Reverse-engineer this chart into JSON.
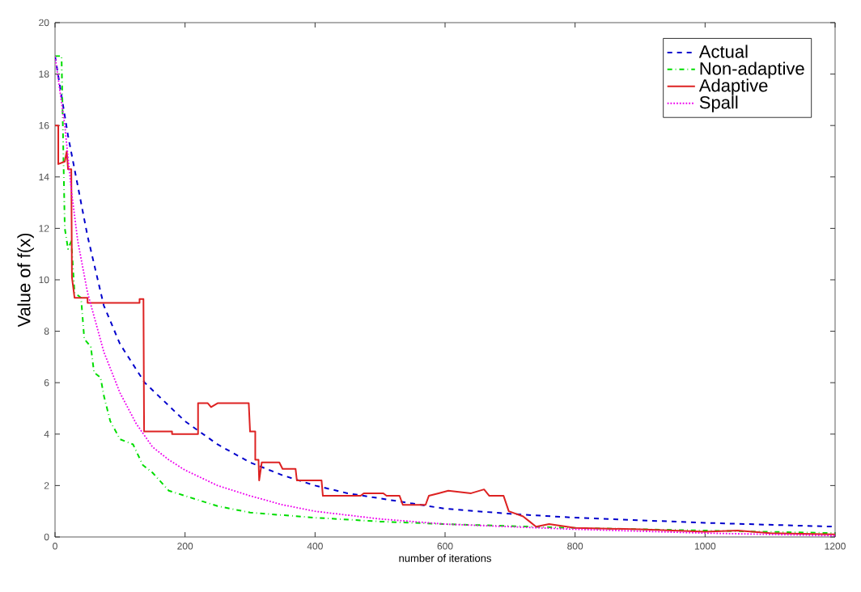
{
  "chart_data": {
    "type": "line",
    "xlabel": "number of iterations",
    "ylabel": "Value of f(x)",
    "xlim": [
      0,
      1200
    ],
    "ylim": [
      0,
      20
    ],
    "xticks": [
      0,
      200,
      400,
      600,
      800,
      1000,
      1200
    ],
    "yticks": [
      0,
      2,
      4,
      6,
      8,
      10,
      12,
      14,
      16,
      18,
      20
    ],
    "legend": "top right",
    "grid": false,
    "marker": "none",
    "series": [
      {
        "name": "Actual",
        "color": "#0000cc",
        "line_style": "dashed",
        "x": [
          0,
          20,
          50,
          75,
          100,
          138,
          200,
          250,
          300,
          350,
          400,
          450,
          500,
          600,
          700,
          800,
          1000,
          1200
        ],
        "values": [
          18.7,
          15.6,
          11.7,
          9,
          7.5,
          6,
          4.5,
          3.6,
          2.9,
          2.4,
          2.0,
          1.7,
          1.5,
          1.1,
          0.9,
          0.75,
          0.55,
          0.4
        ]
      },
      {
        "name": "Non-adaptive",
        "color": "#00dd00",
        "line_style": "dashdot",
        "x": [
          0,
          10,
          15,
          20,
          25,
          30,
          40,
          45,
          55,
          60,
          70,
          75,
          85,
          100,
          120,
          135,
          150,
          175,
          200,
          250,
          300,
          400,
          500,
          600,
          800,
          1000,
          1200
        ],
        "values": [
          18.7,
          18.7,
          12,
          11.2,
          11.5,
          9.5,
          9.3,
          7.7,
          7.4,
          6.4,
          6.2,
          5.5,
          4.5,
          3.8,
          3.6,
          2.8,
          2.5,
          1.8,
          1.6,
          1.2,
          0.95,
          0.75,
          0.6,
          0.5,
          0.35,
          0.25,
          0.15
        ]
      },
      {
        "name": "Adaptive",
        "color": "#dd2222",
        "line_style": "solid",
        "x": [
          0,
          5,
          5,
          15,
          18,
          20,
          25,
          26,
          30,
          50,
          50,
          130,
          130,
          136,
          137,
          180,
          180,
          220,
          220,
          235,
          240,
          250,
          298,
          300,
          308,
          308,
          313,
          314,
          318,
          345,
          350,
          370,
          372,
          410,
          412,
          470,
          475,
          505,
          510,
          530,
          535,
          570,
          575,
          590,
          605,
          640,
          660,
          668,
          690,
          698,
          720,
          730,
          740,
          760,
          800,
          900,
          1000,
          1050,
          1100,
          1200
        ],
        "values": [
          16,
          16,
          14.5,
          14.6,
          15,
          14.3,
          14.3,
          10.1,
          9.3,
          9.3,
          9.1,
          9.1,
          9.25,
          9.25,
          4.1,
          4.1,
          4.0,
          4.0,
          5.2,
          5.2,
          5.05,
          5.2,
          5.2,
          4.1,
          4.1,
          3.0,
          3.0,
          2.2,
          2.9,
          2.9,
          2.65,
          2.65,
          2.2,
          2.2,
          1.6,
          1.6,
          1.7,
          1.7,
          1.6,
          1.6,
          1.25,
          1.25,
          1.6,
          1.7,
          1.8,
          1.7,
          1.85,
          1.6,
          1.6,
          1.0,
          0.8,
          0.6,
          0.4,
          0.5,
          0.35,
          0.3,
          0.2,
          0.25,
          0.15,
          0.1
        ]
      },
      {
        "name": "Spall",
        "color": "#ee00ee",
        "line_style": "dotted",
        "x": [
          0,
          15,
          25,
          35,
          50,
          75,
          100,
          125,
          150,
          175,
          200,
          250,
          300,
          350,
          400,
          500,
          600,
          800,
          1000,
          1200
        ],
        "values": [
          18.7,
          16,
          13.5,
          11.5,
          9.5,
          7.2,
          5.6,
          4.4,
          3.5,
          3.0,
          2.6,
          2.0,
          1.6,
          1.25,
          1.0,
          0.7,
          0.5,
          0.3,
          0.15,
          0.05
        ]
      }
    ]
  }
}
